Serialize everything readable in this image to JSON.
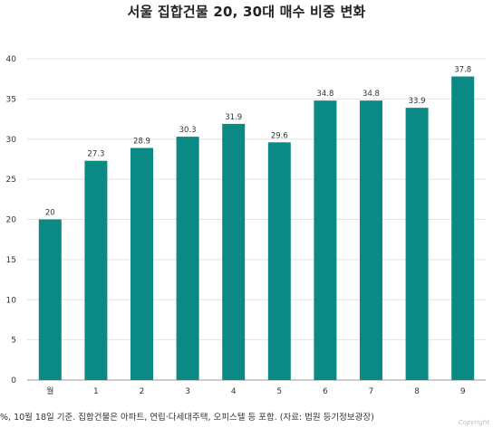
{
  "page": {
    "title": "서울 집합건물 20, 30대 매수 비중 변화",
    "footnote": "%, 10월 18일 기준. 집합건물은 아파트, 연립·다세대주택, 오피스텔 등 포함. (자료: 법원 등기정보광장)",
    "watermark": "Copyright"
  },
  "chart_data": {
    "type": "bar",
    "categories": [
      "월",
      "1",
      "2",
      "3",
      "4",
      "5",
      "6",
      "7",
      "8",
      "9"
    ],
    "values": [
      20,
      27.3,
      28.9,
      30.3,
      31.9,
      29.6,
      34.8,
      34.8,
      33.9,
      37.8
    ],
    "value_labels": [
      "20",
      "27.3",
      "28.9",
      "30.3",
      "31.9",
      "29.6",
      "34.8",
      "34.8",
      "33.9",
      "37.8"
    ],
    "ylim": [
      0,
      40
    ],
    "yticks": [
      "0",
      "5",
      "10",
      "15",
      "20",
      "25",
      "30",
      "35",
      "40"
    ],
    "grid": true,
    "bar_color": "#0b8a85"
  }
}
